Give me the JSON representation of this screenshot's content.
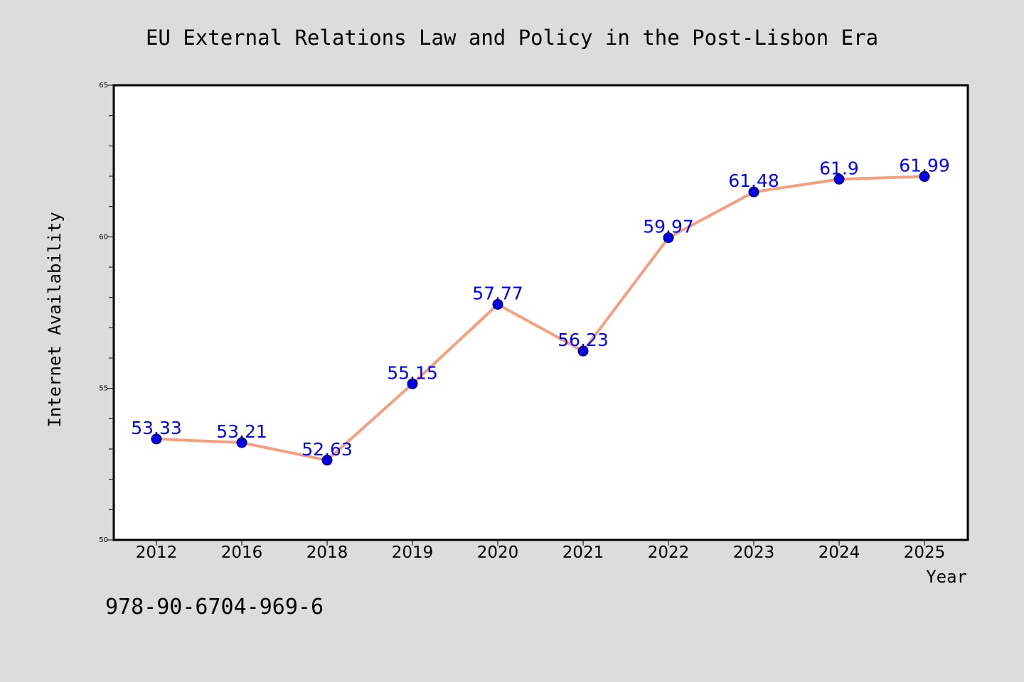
{
  "chart_data": {
    "type": "line",
    "title": "EU External Relations Law and Policy in the Post-Lisbon Era",
    "xlabel": "Year",
    "ylabel": "Internet Availability",
    "categories": [
      "2012",
      "2016",
      "2018",
      "2019",
      "2020",
      "2021",
      "2022",
      "2023",
      "2024",
      "2025"
    ],
    "series": [
      {
        "values": [
          53.33,
          53.21,
          52.63,
          55.15,
          57.77,
          56.23,
          59.97,
          61.48,
          61.9,
          61.99
        ],
        "labels": [
          "53.33",
          "53.21",
          "52.63",
          "55.15",
          "57.77",
          "56.23",
          "59.97",
          "61.48",
          "61.9",
          "61.99"
        ],
        "line_color": "#f4a07e",
        "marker_color": "#0000ee",
        "label_color": "#0000ff"
      }
    ],
    "ylim": [
      50,
      65
    ],
    "yticks": [
      "50",
      "55",
      "60",
      "65"
    ],
    "grid": false,
    "legend": "none"
  },
  "footer": {
    "isbn": "978-90-6704-969-6"
  },
  "colors": {
    "background": "#dcdcdc",
    "plot_background": "#ffffff"
  }
}
